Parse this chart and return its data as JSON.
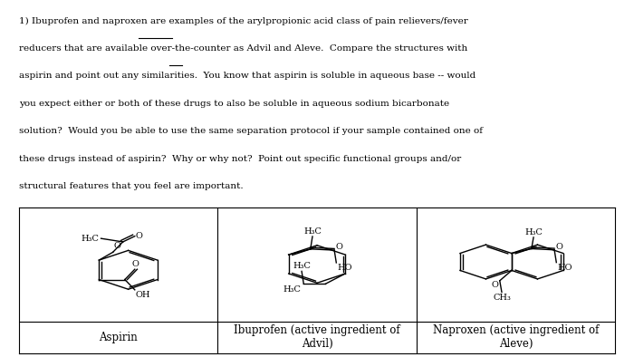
{
  "background_color": "#ffffff",
  "text_color": "#000000",
  "paragraph_lines": [
    "1) Ibuprofen and naproxen are examples of the arylpropionic acid class of pain relievers/fever",
    "reducers that are available over-the-counter as Advil and Aleve.  Compare the structures with",
    "aspirin and point out any similarities.  You know that aspirin is soluble in aqueous base -- would",
    "you expect either or both of these drugs to also be soluble in aqueous sodium bicarbonate",
    "solution?  Would you be able to use the same separation protocol if your sample contained one of",
    "these drugs instead of aspirin?  Why or why not?  Point out specific functional groups and/or",
    "structural features that you feel are important."
  ],
  "table_labels": [
    "Aspirin",
    "Ibuprofen (active ingredient of\nAdvil)",
    "Naproxen (active ingredient of\nAleve)"
  ],
  "fig_width": 7.0,
  "fig_height": 3.94,
  "dpi": 100,
  "text_fontsize": 7.5,
  "label_fontsize": 8.5
}
